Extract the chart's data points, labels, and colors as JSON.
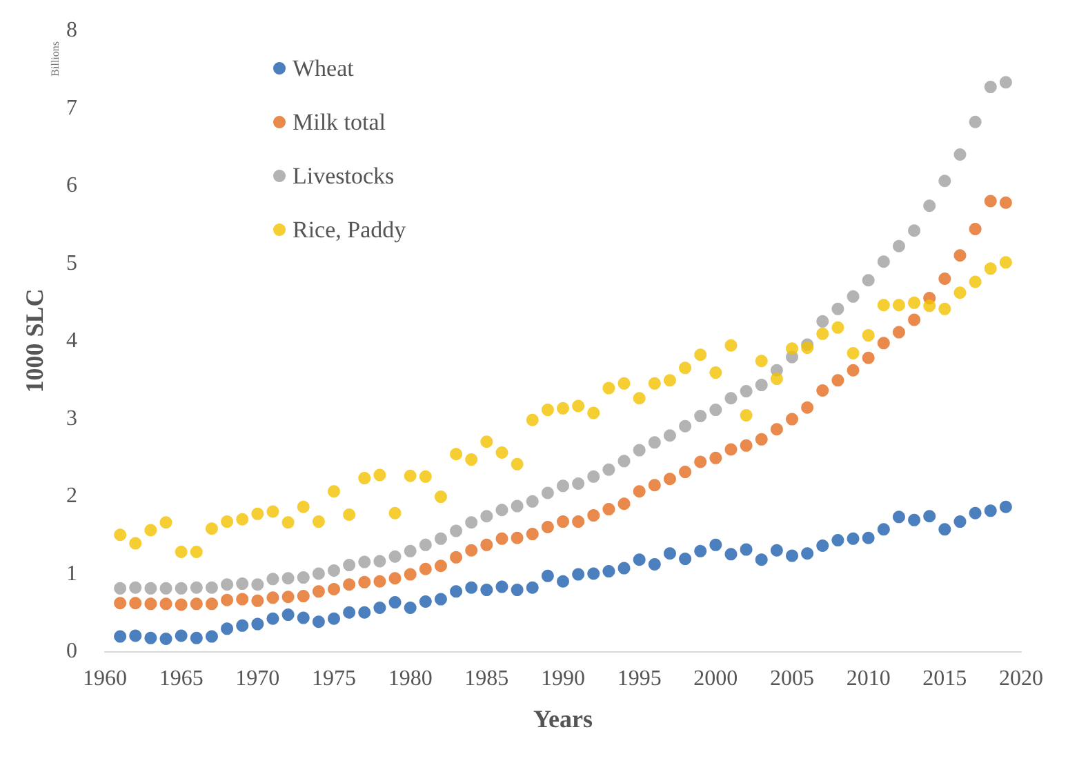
{
  "chart_data": {
    "type": "scatter",
    "xlabel": "Years",
    "ylabel": "1000 SLC",
    "annotations": [
      "Billions"
    ],
    "x": [
      1961,
      1962,
      1963,
      1964,
      1965,
      1966,
      1967,
      1968,
      1969,
      1970,
      1971,
      1972,
      1973,
      1974,
      1975,
      1976,
      1977,
      1978,
      1979,
      1980,
      1981,
      1982,
      1983,
      1984,
      1985,
      1986,
      1987,
      1988,
      1989,
      1990,
      1991,
      1992,
      1993,
      1994,
      1995,
      1996,
      1997,
      1998,
      1999,
      2000,
      2001,
      2002,
      2003,
      2004,
      2005,
      2006,
      2007,
      2008,
      2009,
      2010,
      2011,
      2012,
      2013,
      2014,
      2015,
      2016,
      2017,
      2018,
      2019
    ],
    "series": [
      {
        "name": "Wheat",
        "color": "#1f5fad",
        "values": [
          0.19,
          0.2,
          0.17,
          0.16,
          0.2,
          0.17,
          0.19,
          0.29,
          0.33,
          0.35,
          0.42,
          0.47,
          0.43,
          0.38,
          0.42,
          0.5,
          0.5,
          0.56,
          0.63,
          0.56,
          0.64,
          0.67,
          0.77,
          0.82,
          0.79,
          0.83,
          0.79,
          0.82,
          0.97,
          0.9,
          0.99,
          1.0,
          1.03,
          1.07,
          1.18,
          1.12,
          1.26,
          1.19,
          1.29,
          1.37,
          1.25,
          1.31,
          1.18,
          1.3,
          1.23,
          1.26,
          1.36,
          1.43,
          1.45,
          1.46,
          1.57,
          1.73,
          1.69,
          1.74,
          1.57,
          1.67,
          1.78,
          1.81,
          1.86
        ]
      },
      {
        "name": "Milk total",
        "color": "#e36c1e",
        "values": [
          0.62,
          0.62,
          0.61,
          0.61,
          0.6,
          0.61,
          0.61,
          0.66,
          0.67,
          0.65,
          0.69,
          0.7,
          0.71,
          0.77,
          0.8,
          0.86,
          0.89,
          0.9,
          0.94,
          0.99,
          1.06,
          1.1,
          1.21,
          1.3,
          1.37,
          1.45,
          1.46,
          1.51,
          1.6,
          1.67,
          1.67,
          1.75,
          1.83,
          1.9,
          2.06,
          2.14,
          2.22,
          2.31,
          2.44,
          2.49,
          2.6,
          2.65,
          2.73,
          2.86,
          2.99,
          3.14,
          3.36,
          3.49,
          3.62,
          3.78,
          3.97,
          4.11,
          4.27,
          4.55,
          4.8,
          5.1,
          5.44,
          5.8,
          5.78
        ]
      },
      {
        "name": "Livestocks",
        "color": "#a0a0a0",
        "values": [
          0.81,
          0.82,
          0.81,
          0.81,
          0.81,
          0.82,
          0.82,
          0.86,
          0.87,
          0.86,
          0.93,
          0.94,
          0.95,
          1.0,
          1.04,
          1.11,
          1.15,
          1.16,
          1.22,
          1.29,
          1.37,
          1.45,
          1.55,
          1.66,
          1.74,
          1.82,
          1.87,
          1.93,
          2.04,
          2.13,
          2.16,
          2.25,
          2.34,
          2.45,
          2.59,
          2.69,
          2.78,
          2.9,
          3.03,
          3.11,
          3.26,
          3.35,
          3.43,
          3.62,
          3.79,
          3.95,
          4.25,
          4.41,
          4.57,
          4.78,
          5.02,
          5.22,
          5.42,
          5.74,
          6.06,
          6.4,
          6.82,
          7.27,
          7.33
        ]
      },
      {
        "name": "Rice, Paddy",
        "color": "#f2c200",
        "values": [
          1.5,
          1.39,
          1.56,
          1.66,
          1.28,
          1.28,
          1.58,
          1.67,
          1.7,
          1.77,
          1.8,
          1.66,
          1.86,
          1.67,
          2.06,
          1.76,
          2.23,
          2.27,
          1.78,
          2.26,
          2.25,
          1.99,
          2.54,
          2.47,
          2.7,
          2.56,
          2.41,
          2.98,
          3.11,
          3.13,
          3.16,
          3.07,
          3.39,
          3.45,
          3.26,
          3.45,
          3.49,
          3.65,
          3.82,
          3.59,
          3.94,
          3.04,
          3.74,
          3.51,
          3.9,
          3.91,
          4.09,
          4.17,
          3.84,
          4.07,
          4.46,
          4.46,
          4.49,
          4.45,
          4.41,
          4.62,
          4.76,
          4.93,
          5.01
        ]
      }
    ],
    "xlim": [
      1960,
      2020
    ],
    "xticks": [
      1960,
      1965,
      1970,
      1975,
      1980,
      1985,
      1990,
      1995,
      2000,
      2005,
      2010,
      2015,
      2020
    ],
    "ylim": [
      0,
      8
    ],
    "yticks": [
      0,
      1,
      2,
      3,
      4,
      5,
      6,
      7,
      8
    ],
    "grid": false,
    "legend": "top left",
    "marker": "circle"
  }
}
